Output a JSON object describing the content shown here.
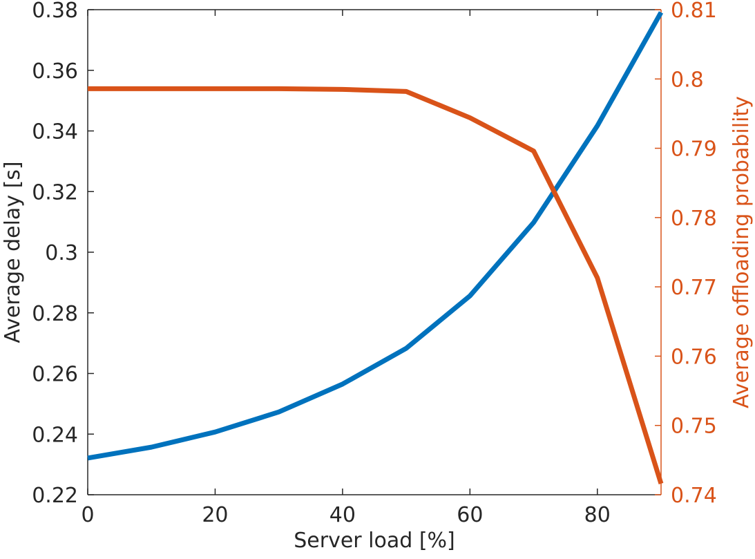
{
  "chart_data": {
    "type": "line",
    "xlabel": "Server load [%]",
    "ylabel": "Average delay [s]",
    "y2label": "Average offloading probability",
    "x": [
      0,
      10,
      20,
      30,
      40,
      50,
      60,
      70,
      80,
      90
    ],
    "series": [
      {
        "color": "#0072bd",
        "values": [
          0.2321,
          0.2357,
          0.2407,
          0.2473,
          0.2565,
          0.2683,
          0.2856,
          0.3098,
          0.3417,
          0.3791
        ]
      },
      {
        "color": "#d95319",
        "axis": "y2",
        "values": [
          0.7986,
          0.7986,
          0.7986,
          0.7986,
          0.7985,
          0.7982,
          0.7944,
          0.7896,
          0.7713,
          0.7416
        ]
      }
    ],
    "xlim": [
      0,
      90
    ],
    "xticks": [
      0,
      20,
      40,
      60,
      80
    ],
    "ylim": [
      0.22,
      0.38
    ],
    "yticks": [
      0.22,
      0.24,
      0.26,
      0.28,
      0.3,
      0.32,
      0.34,
      0.36,
      0.38
    ],
    "y2lim": [
      0.74,
      0.81
    ],
    "y2ticks": [
      0.74,
      0.75,
      0.76,
      0.77,
      0.78,
      0.79,
      0.8,
      0.81
    ],
    "y2color": "#d95319"
  }
}
